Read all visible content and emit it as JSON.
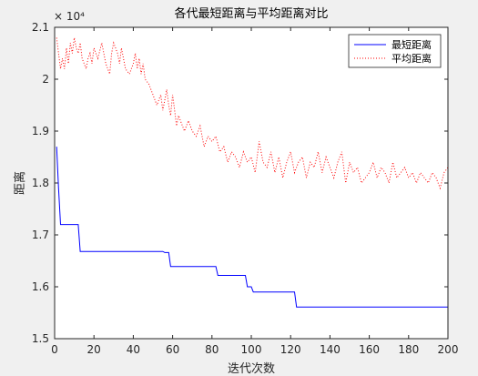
{
  "chart_data": {
    "type": "line",
    "title": "各代最短距离与平均距离对比",
    "xlabel": "迭代次数",
    "ylabel": "距离",
    "xlim": [
      0,
      200
    ],
    "ylim": [
      1.5,
      2.1
    ],
    "y_multiplier_label": "× 10⁴",
    "x_ticks": [
      "0",
      "20",
      "40",
      "60",
      "80",
      "100",
      "120",
      "140",
      "160",
      "180",
      "200"
    ],
    "y_ticks": [
      "1.5",
      "1.6",
      "1.7",
      "1.8",
      "1.9",
      "2",
      "2.1"
    ],
    "x_tick_values": [
      0,
      20,
      40,
      60,
      80,
      100,
      120,
      140,
      160,
      180,
      200
    ],
    "y_tick_values": [
      1.5,
      1.6,
      1.7,
      1.8,
      1.9,
      2.0,
      2.1
    ],
    "grid": false,
    "legend_position": "top-right",
    "series": [
      {
        "name": "最短距离",
        "color": "#0000ff",
        "style": "solid",
        "x": [
          1,
          2,
          3,
          5,
          6,
          11,
          12,
          13,
          55,
          56,
          58,
          59,
          60,
          82,
          83,
          97,
          98,
          100,
          101,
          102,
          122,
          123,
          124,
          200
        ],
        "y": [
          1.87,
          1.79,
          1.72,
          1.72,
          1.72,
          1.72,
          1.72,
          1.668,
          1.668,
          1.666,
          1.666,
          1.639,
          1.639,
          1.639,
          1.622,
          1.622,
          1.6,
          1.6,
          1.59,
          1.59,
          1.59,
          1.561,
          1.561,
          1.561
        ]
      },
      {
        "name": "平均距离",
        "color": "#ff0000",
        "style": "dotted",
        "x": [
          1,
          2,
          3,
          4,
          5,
          6,
          7,
          8,
          9,
          10,
          11,
          12,
          13,
          14,
          15,
          16,
          17,
          18,
          19,
          20,
          22,
          24,
          26,
          28,
          29,
          30,
          32,
          33,
          34,
          36,
          38,
          40,
          41,
          42,
          43,
          44,
          45,
          46,
          48,
          50,
          52,
          54,
          55,
          56,
          57,
          58,
          59,
          60,
          61,
          62,
          63,
          64,
          66,
          68,
          70,
          72,
          74,
          76,
          78,
          80,
          82,
          84,
          86,
          88,
          90,
          92,
          94,
          96,
          98,
          100,
          102,
          104,
          106,
          108,
          110,
          112,
          114,
          116,
          118,
          120,
          122,
          124,
          126,
          128,
          130,
          132,
          134,
          136,
          138,
          140,
          142,
          144,
          146,
          148,
          150,
          152,
          154,
          156,
          158,
          160,
          162,
          164,
          166,
          168,
          170,
          172,
          174,
          176,
          178,
          180,
          182,
          184,
          186,
          188,
          190,
          192,
          194,
          196,
          198,
          200
        ],
        "y": [
          2.08,
          2.05,
          2.02,
          2.04,
          2.02,
          2.06,
          2.03,
          2.07,
          2.05,
          2.08,
          2.06,
          2.05,
          2.07,
          2.04,
          2.03,
          2.02,
          2.04,
          2.05,
          2.03,
          2.06,
          2.04,
          2.07,
          2.03,
          2.01,
          2.05,
          2.07,
          2.05,
          2.03,
          2.06,
          2.02,
          2.01,
          2.03,
          2.05,
          2.02,
          2.04,
          2.01,
          2.03,
          2.0,
          1.99,
          1.97,
          1.95,
          1.97,
          1.94,
          1.96,
          1.98,
          1.95,
          1.93,
          1.97,
          1.94,
          1.91,
          1.93,
          1.92,
          1.9,
          1.92,
          1.9,
          1.89,
          1.91,
          1.87,
          1.89,
          1.88,
          1.89,
          1.86,
          1.87,
          1.84,
          1.86,
          1.85,
          1.83,
          1.86,
          1.84,
          1.85,
          1.82,
          1.88,
          1.84,
          1.83,
          1.86,
          1.82,
          1.85,
          1.81,
          1.84,
          1.86,
          1.82,
          1.84,
          1.85,
          1.81,
          1.84,
          1.83,
          1.86,
          1.82,
          1.85,
          1.83,
          1.81,
          1.84,
          1.86,
          1.8,
          1.84,
          1.82,
          1.83,
          1.8,
          1.81,
          1.82,
          1.84,
          1.81,
          1.83,
          1.82,
          1.8,
          1.84,
          1.81,
          1.82,
          1.83,
          1.81,
          1.82,
          1.8,
          1.82,
          1.81,
          1.8,
          1.82,
          1.81,
          1.79,
          1.82,
          1.83
        ]
      }
    ]
  }
}
